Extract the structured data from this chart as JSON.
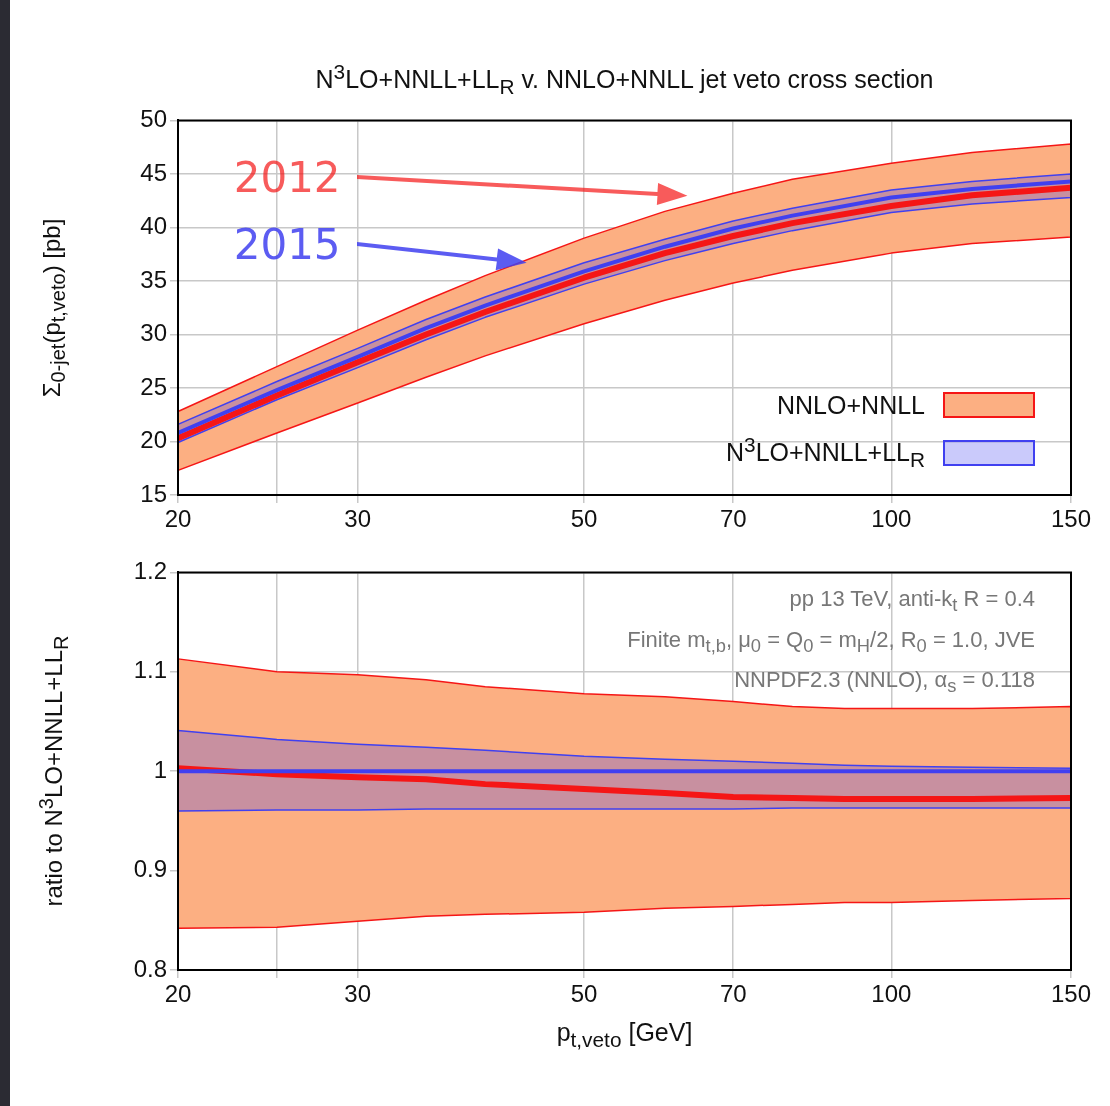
{
  "chart_data": [
    {
      "type": "line",
      "title": "N$^{3}$LO+NNLL+LL$_{R}$ v. NNLO+NNLL jet veto cross section",
      "ylabel": "Σ$_{0-jet}$(p$_{t,veto}$) [pb]",
      "log": "x",
      "grid": true,
      "legend": "bottom right",
      "x": [
        20,
        25,
        30,
        35,
        40,
        50,
        60,
        70,
        80,
        100,
        120,
        150
      ],
      "xlim": [
        20,
        150
      ],
      "xticks": [
        20,
        {
          "value": 25,
          "label": null
        },
        30,
        50,
        70,
        100,
        150
      ],
      "ylim": [
        15,
        50
      ],
      "yticks": [
        15,
        20,
        25,
        30,
        35,
        40,
        45,
        50
      ],
      "series": [
        {
          "name": "NNLO+NNLL",
          "color": "#f51616",
          "values": [
            20.3,
            24.3,
            27.4,
            30.0,
            32.1,
            35.3,
            37.6,
            39.2,
            40.4,
            42.0,
            43.0,
            43.7
          ],
          "lower": [
            17.3,
            20.8,
            23.6,
            26.0,
            28.0,
            31.0,
            33.2,
            34.8,
            36.0,
            37.6,
            38.5,
            39.1
          ],
          "upper": [
            22.8,
            27.0,
            30.4,
            33.2,
            35.5,
            39.0,
            41.5,
            43.2,
            44.5,
            46.0,
            47.0,
            47.8
          ]
        },
        {
          "name": "N$^{3}$LO+NNLL+LL$_{R}$",
          "color": "#4040f0",
          "values": [
            20.8,
            24.8,
            27.9,
            30.6,
            32.7,
            35.9,
            38.2,
            39.9,
            41.1,
            42.8,
            43.6,
            44.3
          ],
          "lower": [
            19.9,
            23.9,
            26.9,
            29.5,
            31.6,
            34.7,
            36.9,
            38.5,
            39.7,
            41.4,
            42.2,
            42.8
          ],
          "upper": [
            21.6,
            25.6,
            28.7,
            31.4,
            33.5,
            36.7,
            38.9,
            40.6,
            41.8,
            43.5,
            44.3,
            45.0
          ]
        }
      ],
      "annotations": [
        "2012",
        "2015"
      ]
    },
    {
      "type": "line",
      "xlabel": "p$_{t,veto}$ [GeV]",
      "ylabel": "ratio to N$^{3}$LO+NNLL+LL$_{R}$",
      "log": "x",
      "grid": true,
      "x": [
        20,
        25,
        30,
        35,
        40,
        50,
        60,
        70,
        80,
        90,
        100,
        120,
        150
      ],
      "xlim": [
        20,
        150
      ],
      "xticks": [
        20,
        {
          "value": 25,
          "label": null
        },
        30,
        50,
        70,
        100,
        150
      ],
      "ylim": [
        0.8,
        1.2
      ],
      "yticks": [
        0.8,
        0.9,
        1,
        1.1,
        1.2
      ],
      "series": [
        {
          "color": "#f51616",
          "values": [
            1.003,
            0.997,
            0.994,
            0.992,
            0.987,
            0.982,
            0.978,
            0.974,
            0.973,
            0.972,
            0.972,
            0.972,
            0.973
          ],
          "lower": [
            0.842,
            0.843,
            0.849,
            0.854,
            0.856,
            0.858,
            0.862,
            0.864,
            0.866,
            0.868,
            0.868,
            0.87,
            0.872
          ],
          "upper": [
            1.113,
            1.1,
            1.097,
            1.092,
            1.085,
            1.078,
            1.075,
            1.07,
            1.065,
            1.063,
            1.063,
            1.063,
            1.065
          ]
        },
        {
          "color": "#4040f0",
          "values": [
            1,
            1,
            1,
            1,
            1,
            1,
            1,
            1,
            1,
            1,
            1,
            1,
            1
          ],
          "lower": [
            0.96,
            0.961,
            0.961,
            0.962,
            0.962,
            0.962,
            0.962,
            0.962,
            0.963,
            0.963,
            0.963,
            0.963,
            0.963
          ],
          "upper": [
            1.041,
            1.032,
            1.027,
            1.024,
            1.021,
            1.015,
            1.012,
            1.01,
            1.008,
            1.006,
            1.005,
            1.004,
            1.003
          ]
        }
      ],
      "annotations": [
        "pp 13 TeV, anti-k$_{t}$ R = 0.4",
        "Finite m$_{t,b}$, μ$_{0}$ = Q$_{0}$ = m$_{H}$/2, R$_{0}$ = 1.0, JVE",
        "NNPDF2.3 (NNLO), α$_{s}$ = 0.118"
      ]
    }
  ]
}
